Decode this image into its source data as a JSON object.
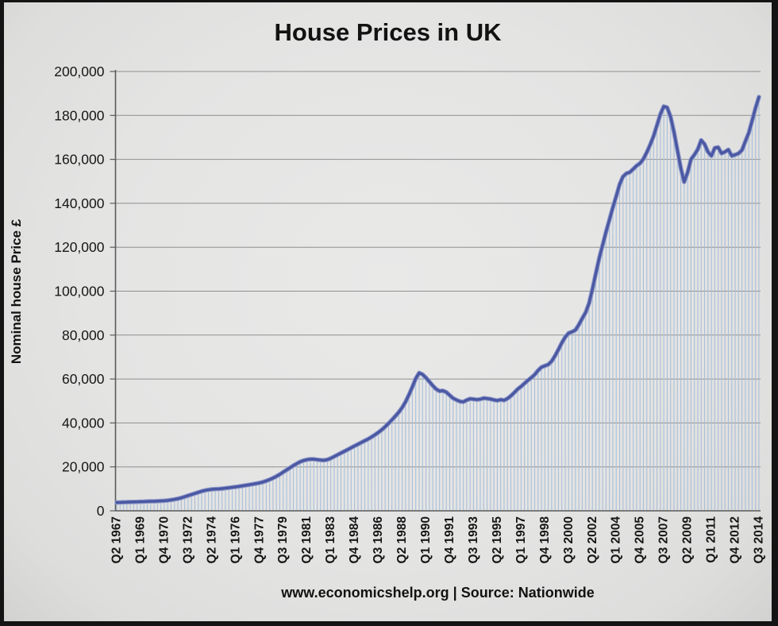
{
  "page": {
    "title": "House Prices in UK",
    "y_axis_title": "Nominal house Price £",
    "footer": "www.economicshelp.org | Source: Nationwide"
  },
  "colors": {
    "background": "#e4e4e3",
    "frame": "#141414",
    "gridline": "#8f8f8f",
    "axis": "#5a5a5a",
    "tick_text": "#161616",
    "line": "#4a58a3",
    "line_edge": "#9099c8",
    "drop_line": "#a9bfd9"
  },
  "chart_data": {
    "type": "area",
    "title": "House Prices in UK",
    "xlabel": "",
    "ylabel": "Nominal house Price £",
    "ylim": [
      0,
      200000
    ],
    "y_tick_step": 20000,
    "y_tick_labels": [
      "0",
      "20,000",
      "40,000",
      "60,000",
      "80,000",
      "100,000",
      "120,000",
      "140,000",
      "160,000",
      "180,000",
      "200,000"
    ],
    "x_frequency": "quarterly",
    "x_start": "Q2 1967",
    "x_end": "Q3 2014",
    "x_tick_every": 7,
    "x_tick_labels": [
      "Q2 1967",
      "Q1 1969",
      "Q4 1970",
      "Q3 1972",
      "Q2 1974",
      "Q1 1976",
      "Q4 1977",
      "Q3 1979",
      "Q2 1981",
      "Q1 1983",
      "Q4 1984",
      "Q3 1986",
      "Q2 1988",
      "Q1 1990",
      "Q4 1991",
      "Q3 1993",
      "Q2 1995",
      "Q1 1997",
      "Q4 1998",
      "Q3 2000",
      "Q2 2002",
      "Q1 2004",
      "Q4 2005",
      "Q3 2007",
      "Q2 2009",
      "Q1 2011",
      "Q4 2012",
      "Q3 2014"
    ],
    "grid": true,
    "legend": false,
    "values": [
      3800,
      3850,
      3900,
      3950,
      4000,
      4050,
      4100,
      4150,
      4200,
      4250,
      4300,
      4350,
      4400,
      4500,
      4600,
      4750,
      4950,
      5200,
      5500,
      5900,
      6400,
      6900,
      7400,
      7900,
      8400,
      8900,
      9300,
      9600,
      9800,
      9900,
      10000,
      10100,
      10300,
      10500,
      10700,
      10900,
      11100,
      11350,
      11600,
      11850,
      12100,
      12400,
      12700,
      13100,
      13600,
      14200,
      14900,
      15700,
      16600,
      17600,
      18600,
      19600,
      20600,
      21500,
      22300,
      22900,
      23300,
      23500,
      23500,
      23300,
      23100,
      23000,
      23300,
      23900,
      24700,
      25500,
      26300,
      27100,
      27900,
      28700,
      29500,
      30300,
      31100,
      31900,
      32700,
      33600,
      34600,
      35700,
      36900,
      38300,
      39800,
      41400,
      43100,
      44900,
      47000,
      49600,
      52800,
      56400,
      60200,
      62800,
      62100,
      60600,
      58800,
      57000,
      55400,
      54500,
      54700,
      54000,
      52600,
      51200,
      50500,
      49800,
      49600,
      50400,
      51000,
      50800,
      50600,
      50800,
      51300,
      51100,
      50900,
      50500,
      50200,
      50600,
      50300,
      51100,
      52300,
      53800,
      55400,
      56600,
      58000,
      59400,
      60600,
      62000,
      63900,
      65400,
      66000,
      66600,
      68100,
      70600,
      73500,
      76500,
      79100,
      80900,
      81500,
      82300,
      84700,
      87600,
      90300,
      94500,
      101000,
      108000,
      115000,
      121000,
      127000,
      132600,
      138000,
      143200,
      148600,
      152200,
      153600,
      154100,
      155600,
      157100,
      158200,
      160200,
      163200,
      166700,
      170600,
      175600,
      180600,
      184100,
      183600,
      179400,
      172400,
      164200,
      156000,
      149700,
      154000,
      160000,
      162100,
      164600,
      168700,
      166900,
      163400,
      161600,
      165200,
      165500,
      162700,
      163400,
      164400,
      161600,
      162100,
      162700,
      164200,
      168200,
      172100,
      177600,
      183400,
      188400
    ]
  }
}
